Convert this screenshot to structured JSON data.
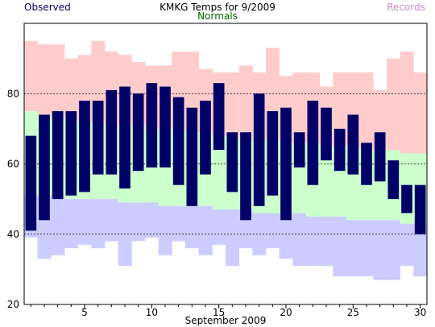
{
  "header": {
    "title": "KMKG Temps for 9/2009",
    "observed_label": "Observed",
    "normals_label": "Normals",
    "records_label": "Records"
  },
  "colors": {
    "record_range": "#ffcccc",
    "normal_high_band": "#ccffcc",
    "normal_low_band": "#ccccff",
    "observed_bar": "#000066",
    "observed_text": "#000066",
    "normals_text": "#006600",
    "records_text": "#cc88cc",
    "gridline": "#000000"
  },
  "chart_data": {
    "type": "bar",
    "title": "KMKG Temps for 9/2009",
    "xlabel": "September 2009",
    "ylabel": "",
    "xlim": [
      0.5,
      30.5
    ],
    "ylim": [
      20,
      100
    ],
    "y_ticks": [
      20,
      40,
      60,
      80
    ],
    "x_ticks": [
      5,
      10,
      15,
      20,
      25,
      30
    ],
    "gridlines_y": [
      40,
      60,
      80
    ],
    "grid": "dashed horizontal",
    "days": [
      1,
      2,
      3,
      4,
      5,
      6,
      7,
      8,
      9,
      10,
      11,
      12,
      13,
      14,
      15,
      16,
      17,
      18,
      19,
      20,
      21,
      22,
      23,
      24,
      25,
      26,
      27,
      28,
      29,
      30
    ],
    "series": [
      {
        "name": "Records high",
        "kind": "record_high",
        "values": [
          95,
          94,
          94,
          90,
          91,
          95,
          92,
          91,
          89,
          88,
          88,
          92,
          92,
          87,
          86,
          86,
          88,
          86,
          93,
          85,
          86,
          86,
          82,
          86,
          86,
          86,
          81,
          90,
          92,
          86
        ]
      },
      {
        "name": "Normals high",
        "kind": "normal_high",
        "values": [
          75,
          74,
          73,
          73,
          72,
          72,
          71,
          71,
          71,
          70,
          70,
          70,
          69,
          69,
          68,
          68,
          67,
          67,
          67,
          66,
          66,
          66,
          65,
          65,
          65,
          64,
          64,
          64,
          63,
          63
        ]
      },
      {
        "name": "Normals low",
        "kind": "normal_low",
        "values": [
          51,
          51,
          51,
          50,
          50,
          50,
          50,
          49,
          49,
          49,
          48,
          48,
          48,
          48,
          47,
          47,
          47,
          46,
          46,
          46,
          46,
          45,
          45,
          45,
          44,
          44,
          44,
          44,
          43,
          43
        ]
      },
      {
        "name": "Records low",
        "kind": "record_low",
        "values": [
          39,
          33,
          34,
          36,
          37,
          36,
          38,
          31,
          38,
          39,
          34,
          38,
          36,
          34,
          37,
          31,
          36,
          34,
          36,
          33,
          31,
          31,
          31,
          28,
          28,
          28,
          27,
          27,
          31,
          28
        ]
      },
      {
        "name": "Observed high",
        "kind": "observed_high",
        "values": [
          68,
          74,
          75,
          75,
          78,
          78,
          81,
          82,
          80,
          83,
          82,
          79,
          76,
          78,
          83,
          69,
          69,
          80,
          75,
          76,
          69,
          78,
          76,
          70,
          74,
          66,
          69,
          61,
          54,
          54
        ]
      },
      {
        "name": "Observed low",
        "kind": "observed_low",
        "values": [
          41,
          44,
          50,
          51,
          52,
          57,
          57,
          53,
          58,
          59,
          59,
          54,
          48,
          57,
          64,
          52,
          44,
          48,
          51,
          44,
          59,
          54,
          61,
          58,
          57,
          54,
          55,
          50,
          46,
          40
        ]
      }
    ]
  }
}
